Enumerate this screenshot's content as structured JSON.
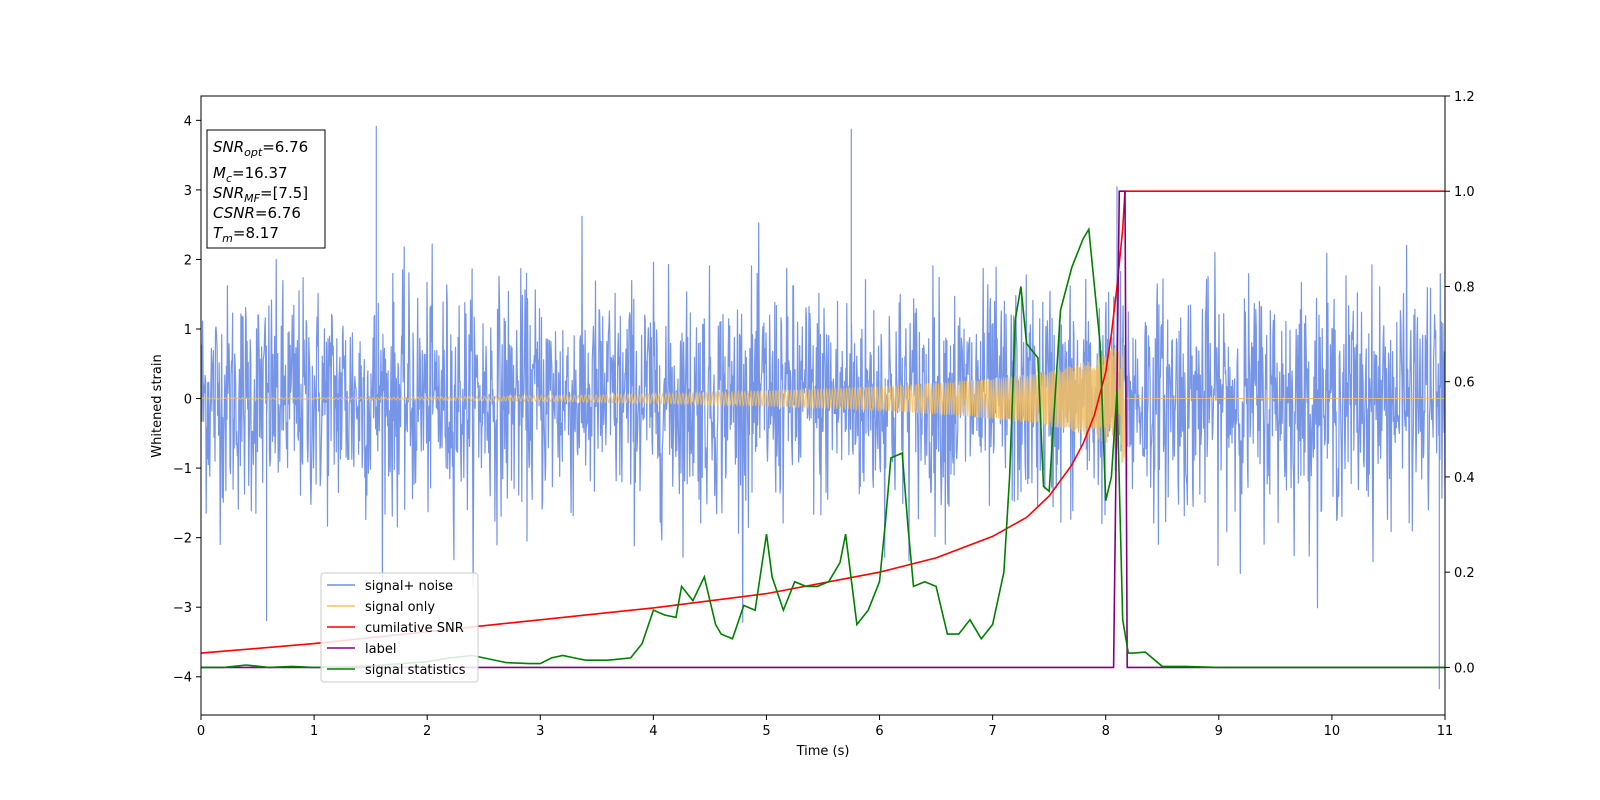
{
  "chart_data": {
    "type": "line",
    "title": "",
    "xlabel": "Time (s)",
    "ylabel": "Whitened strain",
    "xlim": [
      0,
      11
    ],
    "ylim_left": [
      -4.55,
      4.35
    ],
    "ylim_right": [
      -0.1,
      1.2
    ],
    "x_ticks": [
      "0",
      "1",
      "2",
      "3",
      "4",
      "5",
      "6",
      "7",
      "8",
      "9",
      "10",
      "11"
    ],
    "y_left_ticks": [
      "4",
      "3",
      "2",
      "1",
      "0",
      "−1",
      "−2",
      "−3",
      "−4"
    ],
    "y_right_ticks": [
      "1.2",
      "1.0",
      "0.8",
      "0.6",
      "0.4",
      "0.2",
      "0.0"
    ],
    "grid": false,
    "legend_position": "lower-left",
    "colors": {
      "noise": "#6f8fe6",
      "signal": "#f5c060",
      "csnr": "#ff0000",
      "label": "#800080",
      "stat": "#008000"
    },
    "series": [
      {
        "name": "signal+ noise",
        "axis": "left",
        "note_values": "dense whitened noise, amplitude ~ +/-2 with spikes to ~3.9",
        "envelope_sigma": 0.8,
        "peaks": [
          [
            1.55,
            3.92
          ],
          [
            5.75,
            3.88
          ],
          [
            10.95,
            -4.18
          ],
          [
            0.58,
            -3.2
          ],
          [
            8.1,
            3.05
          ]
        ]
      },
      {
        "name": "signal only",
        "axis": "left",
        "chirp_end": 8.17,
        "amplitude_end": 1.1
      },
      {
        "name": "cumilative SNR",
        "axis": "right",
        "x": [
          0,
          1,
          2,
          3,
          4,
          5,
          6,
          6.5,
          7,
          7.3,
          7.5,
          7.7,
          7.8,
          7.9,
          8.0,
          8.05,
          8.1,
          8.15,
          8.17,
          8.2,
          11
        ],
        "y": [
          0.03,
          0.05,
          0.075,
          0.1,
          0.125,
          0.155,
          0.2,
          0.23,
          0.275,
          0.315,
          0.36,
          0.425,
          0.47,
          0.53,
          0.62,
          0.7,
          0.8,
          0.92,
          1.0,
          1.0,
          1.0
        ]
      },
      {
        "name": "label",
        "axis": "right",
        "x": [
          0,
          8.07,
          8.12,
          8.17,
          8.19,
          11
        ],
        "y": [
          0,
          0,
          1.0,
          1.0,
          0,
          0
        ]
      },
      {
        "name": "signal statistics",
        "axis": "right",
        "x": [
          0,
          0.2,
          0.4,
          0.6,
          0.8,
          1.0,
          1.2,
          1.5,
          2.0,
          2.2,
          2.4,
          2.5,
          2.7,
          2.9,
          3.0,
          3.1,
          3.2,
          3.3,
          3.4,
          3.6,
          3.8,
          3.9,
          4.0,
          4.1,
          4.2,
          4.25,
          4.35,
          4.45,
          4.55,
          4.6,
          4.7,
          4.8,
          4.9,
          5.0,
          5.05,
          5.15,
          5.25,
          5.35,
          5.45,
          5.55,
          5.65,
          5.7,
          5.8,
          5.9,
          6.0,
          6.05,
          6.1,
          6.2,
          6.25,
          6.3,
          6.4,
          6.5,
          6.6,
          6.7,
          6.8,
          6.9,
          7.0,
          7.1,
          7.15,
          7.2,
          7.25,
          7.3,
          7.4,
          7.45,
          7.5,
          7.6,
          7.7,
          7.8,
          7.85,
          7.95,
          8.0,
          8.05,
          8.1,
          8.15,
          8.2,
          8.25,
          8.35,
          8.5,
          8.7,
          9.0,
          11
        ],
        "y": [
          0,
          0.0,
          0.005,
          0.0,
          0.002,
          0.0,
          0.001,
          0.003,
          0.012,
          0.02,
          0.025,
          0.02,
          0.01,
          0.008,
          0.008,
          0.02,
          0.025,
          0.02,
          0.015,
          0.015,
          0.02,
          0.05,
          0.12,
          0.11,
          0.105,
          0.17,
          0.14,
          0.19,
          0.09,
          0.07,
          0.06,
          0.13,
          0.12,
          0.28,
          0.19,
          0.12,
          0.18,
          0.17,
          0.17,
          0.18,
          0.22,
          0.28,
          0.09,
          0.12,
          0.18,
          0.3,
          0.44,
          0.45,
          0.3,
          0.17,
          0.18,
          0.17,
          0.07,
          0.07,
          0.1,
          0.06,
          0.09,
          0.2,
          0.4,
          0.73,
          0.8,
          0.68,
          0.65,
          0.38,
          0.37,
          0.75,
          0.84,
          0.9,
          0.92,
          0.68,
          0.35,
          0.4,
          0.58,
          0.1,
          0.03,
          0.03,
          0.032,
          0.002,
          0.002,
          0.0,
          0.0
        ]
      }
    ]
  },
  "info_box": {
    "snr_opt": "=6.76",
    "mc": "=16.37",
    "snr_mf": "=[7.5]",
    "csnr": "=6.76",
    "tm": "=8.17"
  }
}
